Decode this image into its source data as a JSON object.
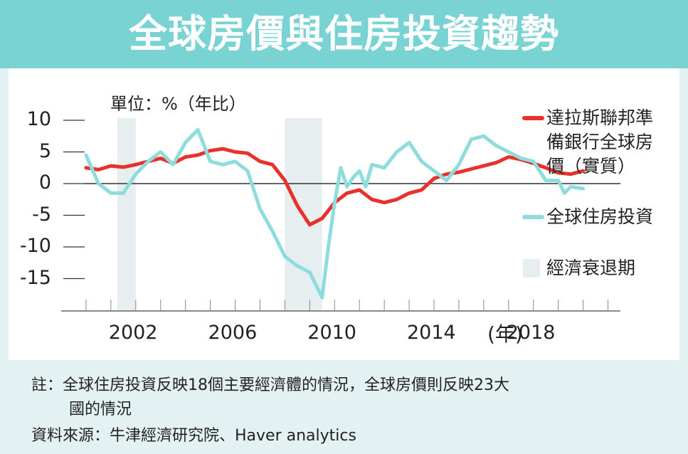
{
  "header": {
    "title": "全球房價與住房投資趨勢"
  },
  "chart_data": {
    "type": "line",
    "unit_label": "單位：%（年比）",
    "x_unit": "(年)",
    "xlim": [
      1999,
      2021.5
    ],
    "ylim": [
      -20,
      10
    ],
    "y_ticks": [
      10,
      5,
      0,
      -5,
      -10,
      -15
    ],
    "x_ticks": [
      2002,
      2006,
      2010,
      2014,
      2018
    ],
    "x_tick_labels": [
      "2002",
      "2006",
      "2010",
      "2014",
      "2018"
    ],
    "zero_line": true,
    "recessions": [
      [
        2001.25,
        2002.0
      ],
      [
        2008.0,
        2009.5
      ]
    ],
    "series": [
      {
        "name": "達拉斯聯邦準備銀行全球房價（實質）",
        "color": "#e8312a",
        "x": [
          2000.0,
          2000.5,
          2001.0,
          2001.5,
          2002.0,
          2002.5,
          2003.0,
          2003.5,
          2004.0,
          2004.5,
          2005.0,
          2005.5,
          2006.0,
          2006.5,
          2007.0,
          2007.5,
          2008.0,
          2008.5,
          2009.0,
          2009.5,
          2010.0,
          2010.5,
          2011.0,
          2011.5,
          2012.0,
          2012.5,
          2013.0,
          2013.5,
          2014.0,
          2014.5,
          2015.0,
          2015.5,
          2016.0,
          2016.5,
          2017.0,
          2017.5,
          2018.0,
          2018.5,
          2019.0,
          2019.5,
          2020.0
        ],
        "values": [
          2.5,
          2.2,
          2.8,
          2.6,
          3.0,
          3.5,
          4.0,
          3.2,
          4.2,
          4.5,
          5.2,
          5.5,
          5.0,
          4.8,
          3.5,
          3.0,
          0.5,
          -3.5,
          -6.5,
          -5.5,
          -3.0,
          -1.5,
          -1.0,
          -2.5,
          -3.0,
          -2.5,
          -1.5,
          -1.0,
          0.8,
          1.5,
          1.8,
          2.3,
          2.8,
          3.3,
          4.2,
          3.8,
          3.2,
          2.5,
          1.7,
          1.5,
          2.0
        ]
      },
      {
        "name": "全球住房投資",
        "color": "#8fdcdc",
        "x": [
          2000.0,
          2000.5,
          2001.0,
          2001.5,
          2002.0,
          2002.25,
          2002.5,
          2003.0,
          2003.5,
          2004.0,
          2004.5,
          2005.0,
          2005.5,
          2006.0,
          2006.5,
          2007.0,
          2007.5,
          2008.0,
          2008.5,
          2009.0,
          2009.25,
          2009.5,
          2009.75,
          2010.0,
          2010.25,
          2010.5,
          2010.75,
          2011.0,
          2011.25,
          2011.5,
          2012.0,
          2012.5,
          2013.0,
          2013.5,
          2014.0,
          2014.5,
          2015.0,
          2015.5,
          2016.0,
          2016.5,
          2017.0,
          2017.5,
          2018.0,
          2018.5,
          2019.0,
          2019.25,
          2019.5,
          2020.0
        ],
        "values": [
          4.5,
          0.0,
          -1.5,
          -1.5,
          1.5,
          2.5,
          3.5,
          5.0,
          3.0,
          6.5,
          8.5,
          3.5,
          3.0,
          3.5,
          2.0,
          -4.0,
          -7.5,
          -11.5,
          -13.0,
          -14.0,
          -16.0,
          -18.0,
          -10.0,
          -3.0,
          2.5,
          -0.5,
          1.0,
          2.0,
          -0.5,
          3.0,
          2.5,
          5.0,
          6.5,
          3.5,
          2.0,
          0.5,
          3.0,
          7.0,
          7.5,
          6.0,
          5.0,
          4.0,
          3.5,
          0.5,
          0.5,
          -1.5,
          -0.5,
          -0.8
        ]
      }
    ],
    "legend": [
      {
        "label": "達拉斯聯邦準備銀行全球房價（實質）",
        "lines": [
          "達拉斯聯邦準",
          "備銀行全球房",
          "價（實質）"
        ],
        "kind": "line",
        "color": "#e8312a"
      },
      {
        "label": "全球住房投資",
        "lines": [
          "全球住房投資"
        ],
        "kind": "line",
        "color": "#8fdcdc"
      },
      {
        "label": "經濟衰退期",
        "lines": [
          "經濟衰退期"
        ],
        "kind": "area",
        "color": "#e6eef0"
      }
    ]
  },
  "footer": {
    "note_line1": "註：全球住房投資反映18個主要經濟體的情況，全球房價則反映23大",
    "note_line2": "國的情況",
    "source": "資料來源：牛津經濟研究院、Haver analytics"
  }
}
